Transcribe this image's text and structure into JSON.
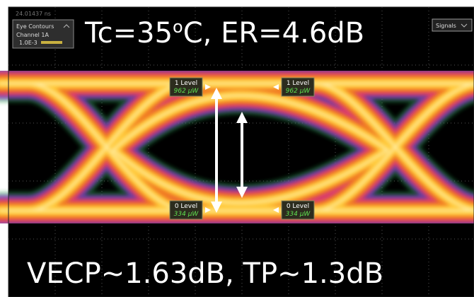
{
  "header": {
    "timestamp": "24.01437 ns",
    "condition": {
      "prefix": "Tc=35",
      "superscript": "o",
      "suffix": "C, ER=4.6dB"
    }
  },
  "eye_contours_panel": {
    "title": "Eye Contours",
    "channel": "Channel 1A",
    "level": "1.0E-3"
  },
  "signals_button": {
    "label": "Signals"
  },
  "markers": [
    {
      "label": "1 Level",
      "value": "962 μW"
    },
    {
      "label": "1 Level",
      "value": "962 μW"
    },
    {
      "label": "0 Level",
      "value": "334 μW"
    },
    {
      "label": "0 Level",
      "value": "334 μW"
    }
  ],
  "footer": {
    "metrics": "VECP~1.63dB, TP~1.3dB"
  }
}
